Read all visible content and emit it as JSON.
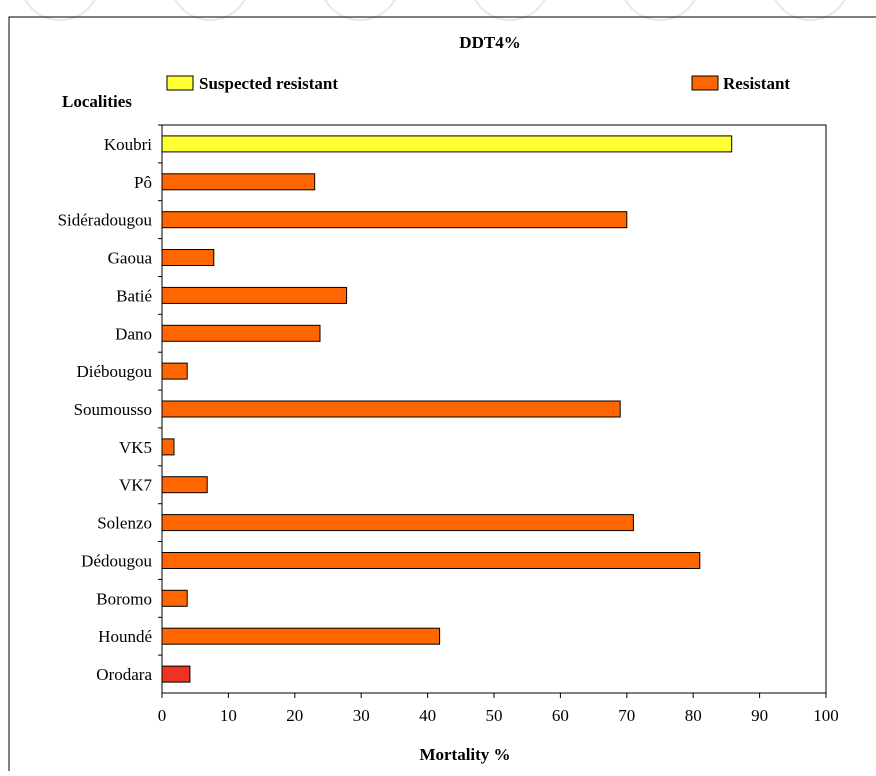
{
  "chart_data": {
    "type": "bar",
    "orientation": "horizontal",
    "title": "DDT4%",
    "xlabel": "Mortality %",
    "ylabel": "Localities",
    "xlim": [
      0,
      100
    ],
    "x_ticks": [
      0,
      10,
      20,
      30,
      40,
      50,
      60,
      70,
      80,
      90,
      100
    ],
    "legend": [
      {
        "label": "Suspected resistant",
        "color": "#ffff33"
      },
      {
        "label": "Resistant",
        "color": "#ff6600"
      }
    ],
    "categories": [
      "Koubri",
      "Pô",
      "Sidéradougou",
      "Gaoua",
      "Batié",
      "Dano",
      "Diébougou",
      "Soumousso",
      "VK5",
      "VK7",
      "Solenzo",
      "Dédougou",
      "Boromo",
      "Houndé",
      "Orodara"
    ],
    "values": [
      85.8,
      23,
      70,
      7.8,
      27.8,
      23.8,
      3.8,
      69,
      1.8,
      6.8,
      71,
      81,
      3.8,
      41.8,
      4.2
    ],
    "bar_colors": [
      "#ffff33",
      "#ff6600",
      "#ff6600",
      "#ff6600",
      "#ff6600",
      "#ff6600",
      "#ff6600",
      "#ff6600",
      "#ff6600",
      "#ff6600",
      "#ff6600",
      "#ff6600",
      "#ff6600",
      "#ff6600",
      "#ee3322"
    ],
    "grid": false
  }
}
